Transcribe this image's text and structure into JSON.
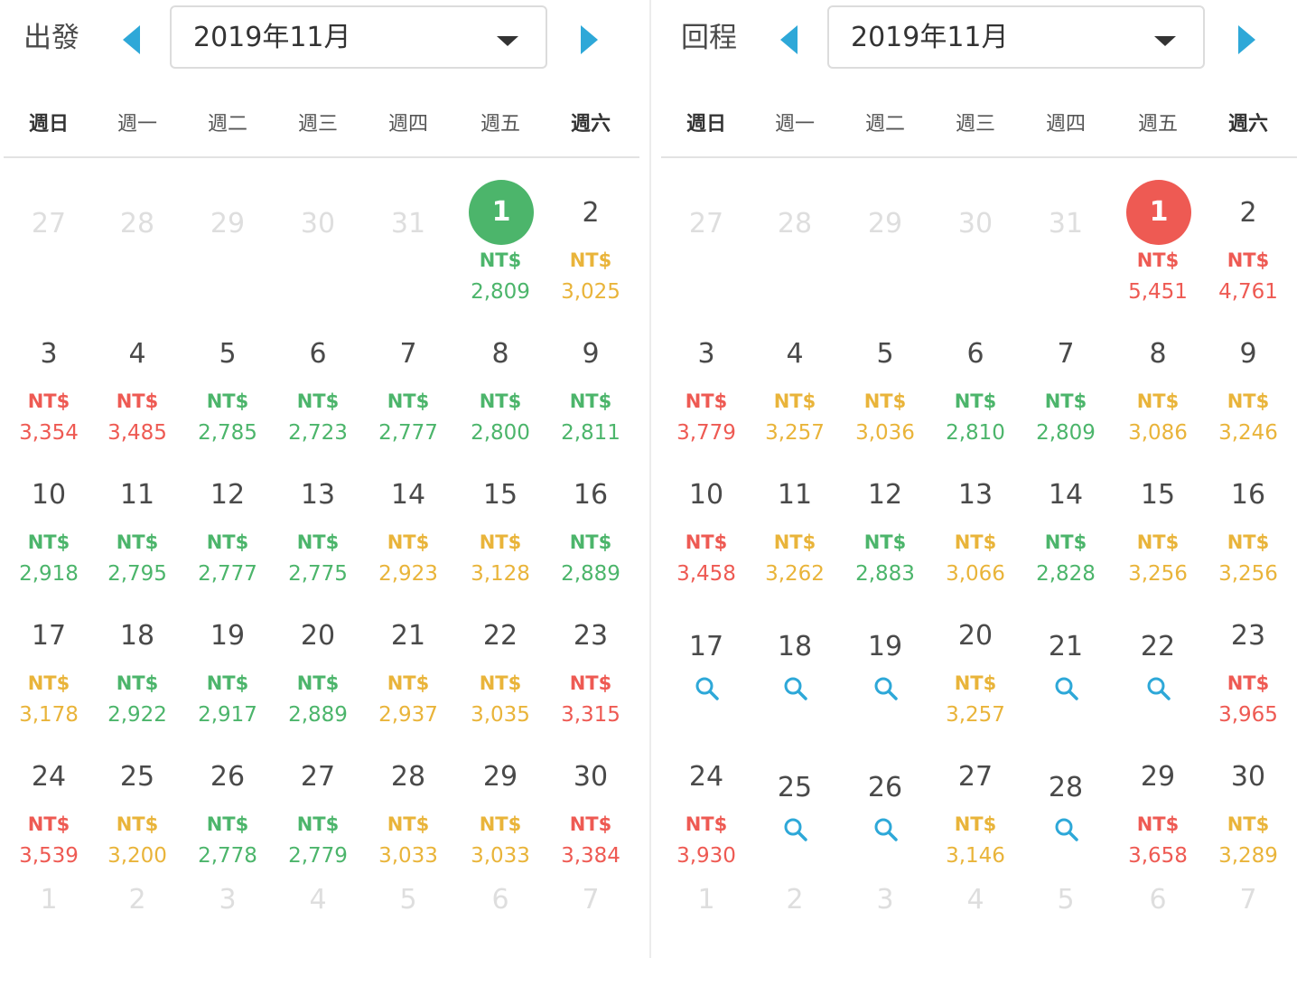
{
  "colors": {
    "cheap": "#4cb56b",
    "mid": "#e9b43a",
    "high": "#ee5a53",
    "accent": "#2ea8d8",
    "muted": "#dedede"
  },
  "weekdays": [
    "週日",
    "週一",
    "週二",
    "週三",
    "週四",
    "週五",
    "週六"
  ],
  "currency": "NT$",
  "panels": [
    {
      "id": "depart",
      "label": "出發",
      "month": "2019年11月",
      "selected_day": "1",
      "selected_color": "#4cb56b",
      "weeks": [
        [
          {
            "day": "27",
            "faded": true
          },
          {
            "day": "28",
            "faded": true
          },
          {
            "day": "29",
            "faded": true
          },
          {
            "day": "30",
            "faded": true
          },
          {
            "day": "31",
            "faded": true
          },
          {
            "day": "1",
            "price": "2,809",
            "level": "cheap",
            "selected": true
          },
          {
            "day": "2",
            "price": "3,025",
            "level": "mid"
          }
        ],
        [
          {
            "day": "3",
            "price": "3,354",
            "level": "high"
          },
          {
            "day": "4",
            "price": "3,485",
            "level": "high"
          },
          {
            "day": "5",
            "price": "2,785",
            "level": "cheap"
          },
          {
            "day": "6",
            "price": "2,723",
            "level": "cheap"
          },
          {
            "day": "7",
            "price": "2,777",
            "level": "cheap"
          },
          {
            "day": "8",
            "price": "2,800",
            "level": "cheap"
          },
          {
            "day": "9",
            "price": "2,811",
            "level": "cheap"
          }
        ],
        [
          {
            "day": "10",
            "price": "2,918",
            "level": "cheap"
          },
          {
            "day": "11",
            "price": "2,795",
            "level": "cheap"
          },
          {
            "day": "12",
            "price": "2,777",
            "level": "cheap"
          },
          {
            "day": "13",
            "price": "2,775",
            "level": "cheap"
          },
          {
            "day": "14",
            "price": "2,923",
            "level": "mid"
          },
          {
            "day": "15",
            "price": "3,128",
            "level": "mid"
          },
          {
            "day": "16",
            "price": "2,889",
            "level": "cheap"
          }
        ],
        [
          {
            "day": "17",
            "price": "3,178",
            "level": "mid"
          },
          {
            "day": "18",
            "price": "2,922",
            "level": "cheap"
          },
          {
            "day": "19",
            "price": "2,917",
            "level": "cheap"
          },
          {
            "day": "20",
            "price": "2,889",
            "level": "cheap"
          },
          {
            "day": "21",
            "price": "2,937",
            "level": "mid"
          },
          {
            "day": "22",
            "price": "3,035",
            "level": "mid"
          },
          {
            "day": "23",
            "price": "3,315",
            "level": "high"
          }
        ],
        [
          {
            "day": "24",
            "price": "3,539",
            "level": "high"
          },
          {
            "day": "25",
            "price": "3,200",
            "level": "mid"
          },
          {
            "day": "26",
            "price": "2,778",
            "level": "cheap"
          },
          {
            "day": "27",
            "price": "2,779",
            "level": "cheap"
          },
          {
            "day": "28",
            "price": "3,033",
            "level": "mid"
          },
          {
            "day": "29",
            "price": "3,033",
            "level": "mid"
          },
          {
            "day": "30",
            "price": "3,384",
            "level": "high"
          }
        ],
        [
          {
            "day": "1",
            "faded": true
          },
          {
            "day": "2",
            "faded": true
          },
          {
            "day": "3",
            "faded": true
          },
          {
            "day": "4",
            "faded": true
          },
          {
            "day": "5",
            "faded": true
          },
          {
            "day": "6",
            "faded": true
          },
          {
            "day": "7",
            "faded": true
          }
        ]
      ]
    },
    {
      "id": "return",
      "label": "回程",
      "month": "2019年11月",
      "selected_day": "1",
      "selected_color": "#ee5a53",
      "weeks": [
        [
          {
            "day": "27",
            "faded": true
          },
          {
            "day": "28",
            "faded": true
          },
          {
            "day": "29",
            "faded": true
          },
          {
            "day": "30",
            "faded": true
          },
          {
            "day": "31",
            "faded": true
          },
          {
            "day": "1",
            "price": "5,451",
            "level": "high",
            "selected": true
          },
          {
            "day": "2",
            "price": "4,761",
            "level": "high"
          }
        ],
        [
          {
            "day": "3",
            "price": "3,779",
            "level": "high"
          },
          {
            "day": "4",
            "price": "3,257",
            "level": "mid"
          },
          {
            "day": "5",
            "price": "3,036",
            "level": "mid"
          },
          {
            "day": "6",
            "price": "2,810",
            "level": "cheap"
          },
          {
            "day": "7",
            "price": "2,809",
            "level": "cheap"
          },
          {
            "day": "8",
            "price": "3,086",
            "level": "mid"
          },
          {
            "day": "9",
            "price": "3,246",
            "level": "mid"
          }
        ],
        [
          {
            "day": "10",
            "price": "3,458",
            "level": "high"
          },
          {
            "day": "11",
            "price": "3,262",
            "level": "mid"
          },
          {
            "day": "12",
            "price": "2,883",
            "level": "cheap"
          },
          {
            "day": "13",
            "price": "3,066",
            "level": "mid"
          },
          {
            "day": "14",
            "price": "2,828",
            "level": "cheap"
          },
          {
            "day": "15",
            "price": "3,256",
            "level": "mid"
          },
          {
            "day": "16",
            "price": "3,256",
            "level": "mid"
          }
        ],
        [
          {
            "day": "17",
            "search": true
          },
          {
            "day": "18",
            "search": true
          },
          {
            "day": "19",
            "search": true
          },
          {
            "day": "20",
            "price": "3,257",
            "level": "mid"
          },
          {
            "day": "21",
            "search": true
          },
          {
            "day": "22",
            "search": true
          },
          {
            "day": "23",
            "price": "3,965",
            "level": "high"
          }
        ],
        [
          {
            "day": "24",
            "price": "3,930",
            "level": "high"
          },
          {
            "day": "25",
            "search": true
          },
          {
            "day": "26",
            "search": true
          },
          {
            "day": "27",
            "price": "3,146",
            "level": "mid"
          },
          {
            "day": "28",
            "search": true
          },
          {
            "day": "29",
            "price": "3,658",
            "level": "high"
          },
          {
            "day": "30",
            "price": "3,289",
            "level": "mid"
          }
        ],
        [
          {
            "day": "1",
            "faded": true
          },
          {
            "day": "2",
            "faded": true
          },
          {
            "day": "3",
            "faded": true
          },
          {
            "day": "4",
            "faded": true
          },
          {
            "day": "5",
            "faded": true
          },
          {
            "day": "6",
            "faded": true
          },
          {
            "day": "7",
            "faded": true
          }
        ]
      ]
    }
  ]
}
